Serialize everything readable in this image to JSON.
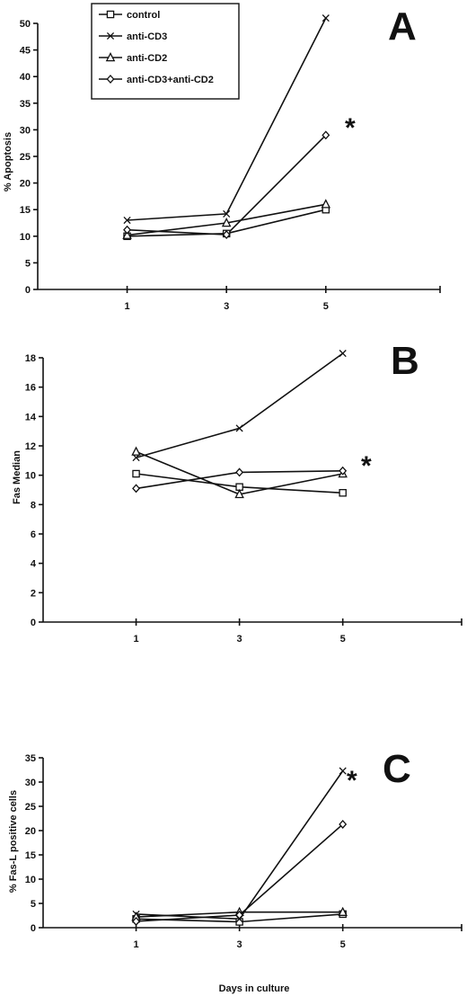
{
  "chart_data": [
    {
      "type": "line",
      "panel_label": "A",
      "annotation": "*",
      "xlabel": "",
      "ylabel": "% Apoptosis",
      "x": [
        1,
        3,
        5
      ],
      "x_tick_labels": [
        "1",
        "3",
        "5"
      ],
      "xlim": [
        -0.8,
        7.3
      ],
      "ylim": [
        0,
        50
      ],
      "y_ticks": [
        0,
        5,
        10,
        15,
        20,
        25,
        30,
        35,
        40,
        45,
        50
      ],
      "legend_position": "top-left",
      "series": [
        {
          "name": "control",
          "marker": "square",
          "values": [
            10,
            10.5,
            15
          ]
        },
        {
          "name": "anti-CD3",
          "marker": "x",
          "values": [
            13,
            14.2,
            51
          ]
        },
        {
          "name": "anti-CD2",
          "marker": "triangle",
          "values": [
            10.2,
            12.5,
            16
          ]
        },
        {
          "name": "anti-CD3+anti-CD2",
          "marker": "diamond",
          "values": [
            11.2,
            10.3,
            29
          ]
        }
      ]
    },
    {
      "type": "line",
      "panel_label": "B",
      "annotation": "*",
      "xlabel": "",
      "ylabel": "Fas Median",
      "x": [
        1,
        3,
        5
      ],
      "x_tick_labels": [
        "1",
        "3",
        "5"
      ],
      "xlim": [
        -0.8,
        7.3
      ],
      "ylim": [
        0,
        18
      ],
      "y_ticks": [
        0,
        2,
        4,
        6,
        8,
        10,
        12,
        14,
        16,
        18
      ],
      "series": [
        {
          "name": "control",
          "marker": "square",
          "values": [
            10.1,
            9.2,
            8.8
          ]
        },
        {
          "name": "anti-CD3",
          "marker": "x",
          "values": [
            11.2,
            13.2,
            18.3
          ]
        },
        {
          "name": "anti-CD2",
          "marker": "triangle",
          "values": [
            11.6,
            8.7,
            10.1
          ]
        },
        {
          "name": "anti-CD3+anti-CD2",
          "marker": "diamond",
          "values": [
            9.1,
            10.2,
            10.3
          ]
        }
      ]
    },
    {
      "type": "line",
      "panel_label": "C",
      "annotation": "*",
      "xlabel": "Days in culture",
      "ylabel": "% Fas-L positive cells",
      "x": [
        1,
        3,
        5
      ],
      "x_tick_labels": [
        "1",
        "3",
        "5"
      ],
      "xlim": [
        -0.8,
        7.3
      ],
      "ylim": [
        0,
        35
      ],
      "y_ticks": [
        0,
        5,
        10,
        15,
        20,
        25,
        30,
        35
      ],
      "series": [
        {
          "name": "control",
          "marker": "square",
          "values": [
            1.8,
            1.2,
            2.8
          ]
        },
        {
          "name": "anti-CD3",
          "marker": "x",
          "values": [
            2.8,
            1.8,
            32.3
          ]
        },
        {
          "name": "anti-CD2",
          "marker": "triangle",
          "values": [
            2.2,
            3.2,
            3.2
          ]
        },
        {
          "name": "anti-CD3+anti-CD2",
          "marker": "diamond",
          "values": [
            1.3,
            2.6,
            21.3
          ]
        }
      ]
    }
  ]
}
